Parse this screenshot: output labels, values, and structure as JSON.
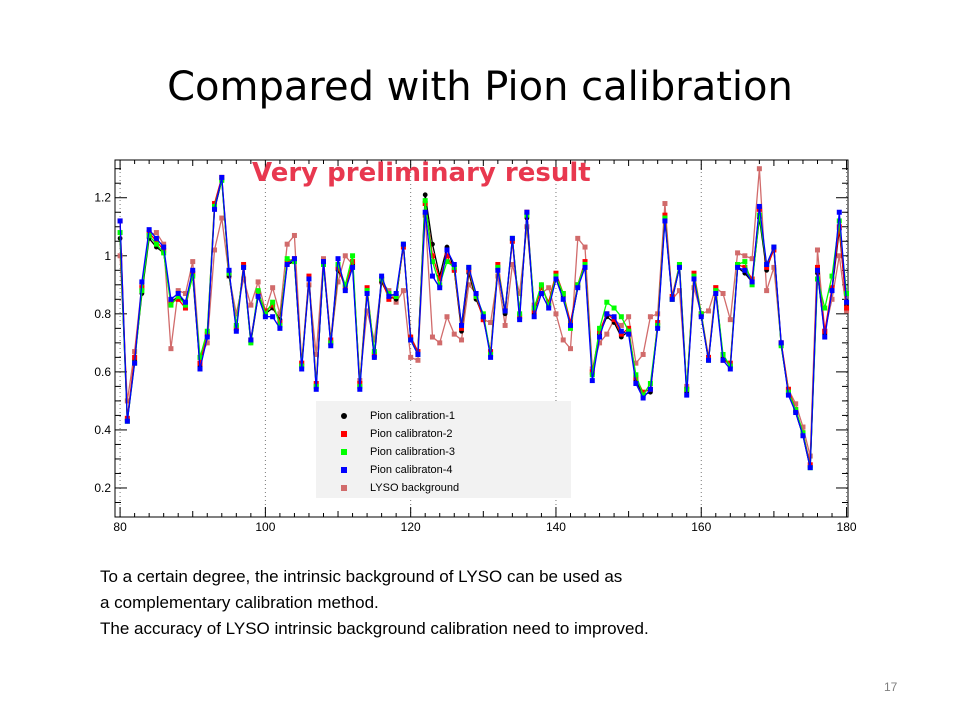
{
  "slide": {
    "title": "Compared with Pion calibration",
    "body_lines": [
      "To a certain degree, the intrinsic background of LYSO can be used as",
      " a complementary calibration method.",
      "The accuracy of LYSO intrinsic background calibration need to improved."
    ],
    "page_number": "17"
  },
  "chart_data": {
    "type": "line",
    "title": "",
    "xlabel": "",
    "ylabel": "",
    "annotation": "Very preliminary result",
    "xlim": [
      79.3,
      180.2
    ],
    "ylim": [
      0.1,
      1.33
    ],
    "xticks": [
      80,
      100,
      120,
      140,
      160,
      180
    ],
    "yticks": [
      0.2,
      0.4,
      0.6,
      0.8,
      1,
      1.2
    ],
    "xtick_labels": [
      "80",
      "100",
      "120",
      "140",
      "160",
      "180"
    ],
    "ytick_labels": [
      "0.2",
      "0.4",
      "0.6",
      "0.8",
      "1",
      "1.2"
    ],
    "grid": "x-dotted",
    "legend_position": "bottom-center",
    "x": [
      80,
      81,
      82,
      83,
      84,
      85,
      86,
      87,
      88,
      89,
      90,
      91,
      92,
      93,
      94,
      95,
      96,
      97,
      98,
      99,
      100,
      101,
      102,
      103,
      104,
      105,
      106,
      107,
      108,
      109,
      110,
      111,
      112,
      113,
      114,
      115,
      116,
      117,
      118,
      119,
      120,
      121,
      122,
      123,
      124,
      125,
      126,
      127,
      128,
      129,
      130,
      131,
      132,
      133,
      134,
      135,
      136,
      137,
      138,
      139,
      140,
      141,
      142,
      143,
      144,
      145,
      146,
      147,
      148,
      149,
      150,
      151,
      152,
      153,
      154,
      155,
      156,
      157,
      158,
      159,
      160,
      161,
      162,
      163,
      164,
      165,
      166,
      167,
      168,
      169,
      170,
      171,
      172,
      173,
      174,
      175,
      176,
      177,
      178,
      179,
      180
    ],
    "series": [
      {
        "name": "Pion calibration-1",
        "color": "#000000",
        "marker": "circle",
        "values": [
          1.06,
          0.43,
          0.64,
          0.87,
          1.06,
          1.03,
          1.01,
          0.84,
          0.86,
          0.84,
          0.93,
          0.62,
          0.72,
          1.16,
          1.26,
          0.93,
          0.76,
          0.96,
          0.7,
          0.86,
          0.8,
          0.82,
          0.78,
          0.97,
          0.98,
          0.62,
          0.92,
          0.55,
          0.97,
          0.7,
          0.95,
          0.9,
          0.97,
          0.55,
          0.88,
          0.65,
          0.91,
          0.86,
          0.85,
          1.04,
          0.72,
          0.67,
          1.21,
          1.04,
          0.93,
          1.03,
          0.95,
          0.74,
          0.94,
          0.85,
          0.79,
          0.66,
          0.96,
          0.8,
          1.06,
          0.8,
          1.13,
          0.8,
          0.9,
          0.83,
          0.92,
          0.86,
          0.76,
          0.89,
          0.97,
          0.59,
          0.73,
          0.79,
          0.77,
          0.72,
          0.74,
          0.57,
          0.52,
          0.53,
          0.76,
          1.13,
          0.85,
          0.96,
          0.53,
          0.93,
          0.79,
          0.64,
          0.88,
          0.65,
          0.62,
          0.96,
          0.94,
          0.91,
          1.13,
          0.95,
          1.03,
          0.69,
          0.53,
          0.46,
          0.38,
          0.27,
          0.94,
          0.73,
          0.88,
          1.09,
          0.83
        ]
      },
      {
        "name": "Pion calibraton-2",
        "color": "#ff0000",
        "marker": "square",
        "values": [
          1.12,
          0.44,
          0.65,
          0.89,
          1.08,
          1.05,
          1.02,
          0.84,
          0.85,
          0.82,
          0.94,
          0.63,
          0.73,
          1.18,
          1.27,
          0.94,
          0.75,
          0.97,
          0.71,
          0.87,
          0.81,
          0.83,
          0.77,
          0.98,
          0.99,
          0.63,
          0.93,
          0.56,
          0.98,
          0.71,
          0.96,
          0.89,
          0.98,
          0.56,
          0.89,
          0.66,
          0.92,
          0.85,
          0.86,
          1.03,
          0.72,
          0.67,
          1.18,
          1.0,
          0.92,
          1.0,
          0.95,
          0.75,
          0.95,
          0.86,
          0.78,
          0.67,
          0.97,
          0.81,
          1.05,
          0.79,
          1.15,
          0.81,
          0.89,
          0.84,
          0.94,
          0.87,
          0.77,
          0.9,
          0.98,
          0.6,
          0.74,
          0.8,
          0.78,
          0.73,
          0.75,
          0.58,
          0.53,
          0.54,
          0.77,
          1.14,
          0.86,
          0.97,
          0.54,
          0.94,
          0.8,
          0.65,
          0.89,
          0.64,
          0.63,
          0.97,
          0.96,
          0.92,
          1.16,
          0.96,
          1.02,
          0.7,
          0.54,
          0.47,
          0.39,
          0.28,
          0.96,
          0.74,
          0.89,
          1.1,
          0.82
        ]
      },
      {
        "name": "Pion calibration-3",
        "color": "#00ff00",
        "marker": "square",
        "values": [
          1.08,
          0.43,
          0.63,
          0.88,
          1.07,
          1.04,
          1.01,
          0.83,
          0.86,
          0.83,
          0.93,
          0.65,
          0.74,
          1.17,
          1.26,
          0.94,
          0.76,
          0.96,
          0.7,
          0.88,
          0.8,
          0.84,
          0.76,
          0.99,
          0.98,
          0.62,
          0.92,
          0.55,
          0.97,
          0.7,
          0.97,
          0.9,
          1.0,
          0.55,
          0.88,
          0.67,
          0.92,
          0.87,
          0.86,
          1.04,
          0.71,
          0.66,
          1.19,
          0.98,
          0.9,
          0.98,
          0.96,
          0.76,
          0.96,
          0.86,
          0.8,
          0.66,
          0.96,
          0.81,
          1.06,
          0.8,
          1.14,
          0.82,
          0.9,
          0.83,
          0.93,
          0.87,
          0.75,
          0.9,
          0.97,
          0.59,
          0.75,
          0.84,
          0.82,
          0.79,
          0.74,
          0.59,
          0.52,
          0.56,
          0.76,
          1.13,
          0.85,
          0.97,
          0.54,
          0.93,
          0.8,
          0.64,
          0.88,
          0.66,
          0.62,
          0.97,
          0.98,
          0.9,
          1.14,
          0.97,
          1.03,
          0.69,
          0.53,
          0.47,
          0.39,
          0.27,
          0.92,
          0.82,
          0.93,
          1.12,
          0.87
        ]
      },
      {
        "name": "Pion calibraton-4",
        "color": "#0000ff",
        "marker": "square",
        "values": [
          1.12,
          0.43,
          0.63,
          0.91,
          1.09,
          1.06,
          1.03,
          0.85,
          0.87,
          0.84,
          0.95,
          0.61,
          0.72,
          1.16,
          1.27,
          0.95,
          0.74,
          0.96,
          0.71,
          0.86,
          0.79,
          0.79,
          0.75,
          0.97,
          0.99,
          0.61,
          0.92,
          0.54,
          0.98,
          0.69,
          0.99,
          0.88,
          0.96,
          0.54,
          0.87,
          0.65,
          0.93,
          0.86,
          0.87,
          1.04,
          0.71,
          0.66,
          1.15,
          0.93,
          0.89,
          1.02,
          0.97,
          0.76,
          0.96,
          0.87,
          0.79,
          0.65,
          0.95,
          0.81,
          1.06,
          0.78,
          1.15,
          0.79,
          0.87,
          0.82,
          0.92,
          0.85,
          0.76,
          0.89,
          0.96,
          0.57,
          0.72,
          0.8,
          0.79,
          0.74,
          0.73,
          0.56,
          0.51,
          0.54,
          0.75,
          1.12,
          0.85,
          0.96,
          0.52,
          0.92,
          0.79,
          0.64,
          0.87,
          0.64,
          0.61,
          0.96,
          0.95,
          0.91,
          1.17,
          0.97,
          1.03,
          0.7,
          0.52,
          0.46,
          0.38,
          0.27,
          0.95,
          0.72,
          0.88,
          1.15,
          0.84
        ]
      },
      {
        "name": "LYSO background",
        "color": "#d16b6b",
        "marker": "square",
        "values": [
          1.0,
          0.5,
          0.67,
          0.9,
          1.07,
          1.08,
          1.04,
          0.68,
          0.88,
          0.87,
          0.98,
          0.65,
          0.7,
          1.02,
          1.13,
          0.93,
          0.8,
          0.92,
          0.83,
          0.91,
          0.81,
          0.89,
          0.8,
          1.04,
          1.07,
          0.63,
          0.9,
          0.66,
          0.99,
          0.7,
          0.91,
          1.0,
          0.97,
          0.57,
          0.81,
          0.71,
          0.91,
          0.88,
          0.84,
          0.88,
          0.65,
          0.64,
          1.14,
          0.72,
          0.7,
          0.79,
          0.73,
          0.71,
          0.9,
          0.87,
          0.78,
          0.77,
          0.93,
          0.76,
          0.97,
          0.87,
          1.1,
          0.83,
          0.87,
          0.89,
          0.8,
          0.71,
          0.68,
          1.06,
          1.03,
          0.61,
          0.7,
          0.73,
          0.78,
          0.76,
          0.79,
          0.63,
          0.66,
          0.79,
          0.8,
          1.18,
          0.85,
          0.88,
          0.55,
          0.89,
          0.8,
          0.81,
          0.89,
          0.87,
          0.78,
          1.01,
          1.0,
          0.99,
          1.3,
          0.88,
          0.96,
          0.7,
          0.54,
          0.49,
          0.41,
          0.31,
          1.02,
          0.74,
          0.85,
          1.0,
          0.81
        ]
      }
    ]
  }
}
